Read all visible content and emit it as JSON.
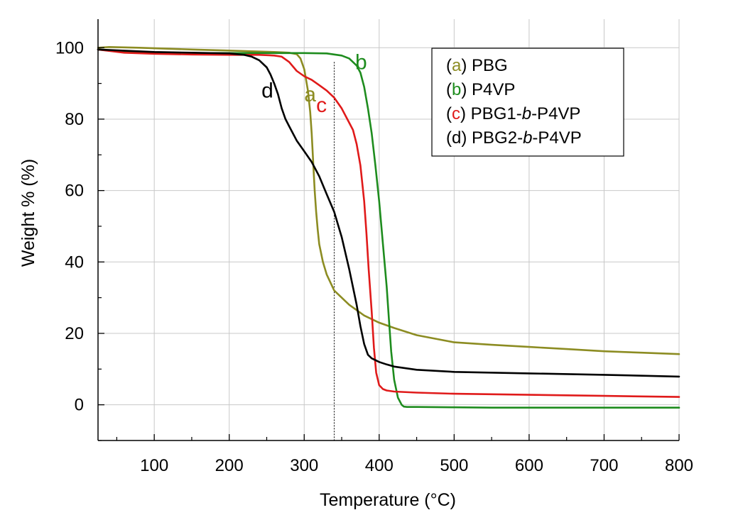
{
  "chart_data": {
    "type": "line",
    "title": "",
    "xlabel": "Temperature (°C)",
    "ylabel": "Weight % (%)",
    "xlim": [
      25,
      800
    ],
    "ylim": [
      -10,
      108
    ],
    "xticks": [
      100,
      200,
      300,
      400,
      500,
      600,
      700,
      800
    ],
    "yticks": [
      0,
      20,
      40,
      60,
      80,
      100
    ],
    "grid": true,
    "legend_position": "top-right",
    "reference_line_x": 340,
    "series": [
      {
        "key": "a",
        "name": "PBG",
        "color": "#8c8c22",
        "curve_label": "a",
        "label_at": [
          300,
          85
        ],
        "x": [
          25,
          40,
          80,
          150,
          200,
          230,
          260,
          270,
          280,
          290,
          295,
          300,
          305,
          308,
          310,
          312,
          314,
          316,
          318,
          320,
          325,
          330,
          340,
          360,
          380,
          400,
          420,
          450,
          500,
          550,
          600,
          650,
          700,
          750,
          800
        ],
        "y": [
          100,
          100.2,
          100,
          99.5,
          99.2,
          99,
          98.8,
          98.7,
          98.6,
          98.2,
          97,
          94,
          88,
          82,
          76,
          68,
          60,
          54,
          49,
          45,
          40,
          36.5,
          32,
          28,
          25,
          23,
          21.5,
          19.5,
          17.5,
          16.8,
          16.2,
          15.6,
          15,
          14.6,
          14.2
        ]
      },
      {
        "key": "b",
        "name": "P4VP",
        "color": "#1e8c1e",
        "curve_label": "b",
        "label_at": [
          368,
          94
        ],
        "x": [
          25,
          60,
          100,
          150,
          200,
          250,
          300,
          330,
          350,
          360,
          370,
          375,
          380,
          385,
          390,
          395,
          400,
          405,
          410,
          413,
          416,
          420,
          425,
          430,
          433,
          437,
          450,
          500,
          550,
          600,
          700,
          800
        ],
        "y": [
          99.5,
          98.8,
          98.6,
          98.5,
          98.5,
          98.5,
          98.5,
          98.4,
          97.8,
          97,
          95,
          93,
          89,
          83,
          76,
          67,
          57,
          45,
          33,
          24,
          15,
          7,
          2,
          0,
          -0.5,
          -0.6,
          -0.6,
          -0.7,
          -0.8,
          -0.8,
          -0.8,
          -0.8
        ]
      },
      {
        "key": "c",
        "name": "PBG1-b-P4VP",
        "color": "#e01a1a",
        "curve_label": "c",
        "label_at": [
          316,
          82
        ],
        "x": [
          25,
          60,
          100,
          150,
          200,
          240,
          260,
          270,
          280,
          290,
          300,
          310,
          320,
          330,
          340,
          350,
          360,
          365,
          370,
          375,
          380,
          383,
          386,
          390,
          393,
          396,
          400,
          405,
          410,
          420,
          450,
          500,
          600,
          700,
          800
        ],
        "y": [
          99.5,
          98.6,
          98.3,
          98.1,
          98,
          98,
          97.8,
          97.5,
          96,
          93.5,
          92,
          91,
          89.5,
          88,
          86,
          83,
          79,
          77,
          73,
          67,
          57,
          48,
          38,
          26,
          16,
          9,
          5.5,
          4.4,
          4,
          3.7,
          3.4,
          3.1,
          2.8,
          2.5,
          2.2
        ]
      },
      {
        "key": "d",
        "name": "PBG2-b-P4VP",
        "color": "#000000",
        "curve_label": "d",
        "label_at": [
          243,
          86
        ],
        "x": [
          25,
          100,
          150,
          200,
          220,
          230,
          240,
          250,
          255,
          260,
          265,
          270,
          275,
          280,
          290,
          300,
          310,
          320,
          330,
          340,
          350,
          360,
          370,
          375,
          380,
          385,
          390,
          395,
          400,
          410,
          420,
          450,
          500,
          600,
          700,
          800
        ],
        "y": [
          99.5,
          98.8,
          98.6,
          98.4,
          98,
          97.5,
          96.5,
          94.5,
          92.5,
          90,
          87,
          83,
          80,
          78,
          74,
          71,
          68,
          64,
          59,
          54,
          47,
          38,
          28,
          22,
          17,
          14,
          13,
          12.5,
          12,
          11.3,
          10.7,
          9.8,
          9.2,
          8.8,
          8.4,
          7.9
        ]
      }
    ]
  }
}
